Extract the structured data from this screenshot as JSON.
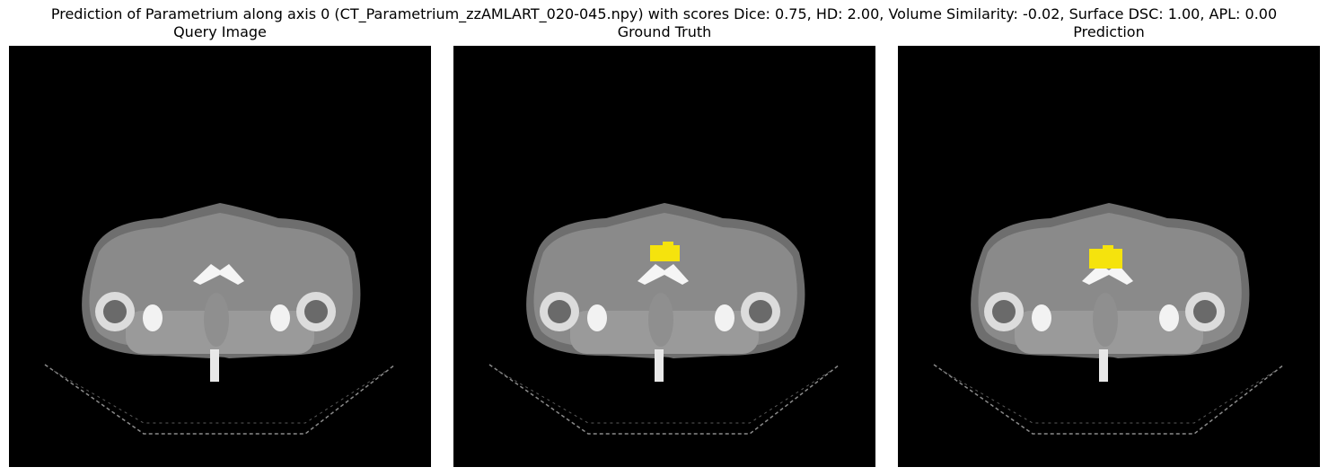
{
  "figure": {
    "suptitle": "Prediction of Parametrium along axis 0 (CT_Parametrium_zzAMLART_020-045.npy) with scores Dice: 0.75, HD: 2.00, Volume Similarity: -0.02, Surface DSC: 1.00, APL: 0.00"
  },
  "panels": [
    {
      "title": "Query Image",
      "overlay": false
    },
    {
      "title": "Ground Truth",
      "overlay": true
    },
    {
      "title": "Prediction",
      "overlay": true
    }
  ],
  "colors": {
    "background": "#000000",
    "mask": "#f5e30d",
    "tissue": "#7a7a7a",
    "bone": "#f0f0f0"
  }
}
